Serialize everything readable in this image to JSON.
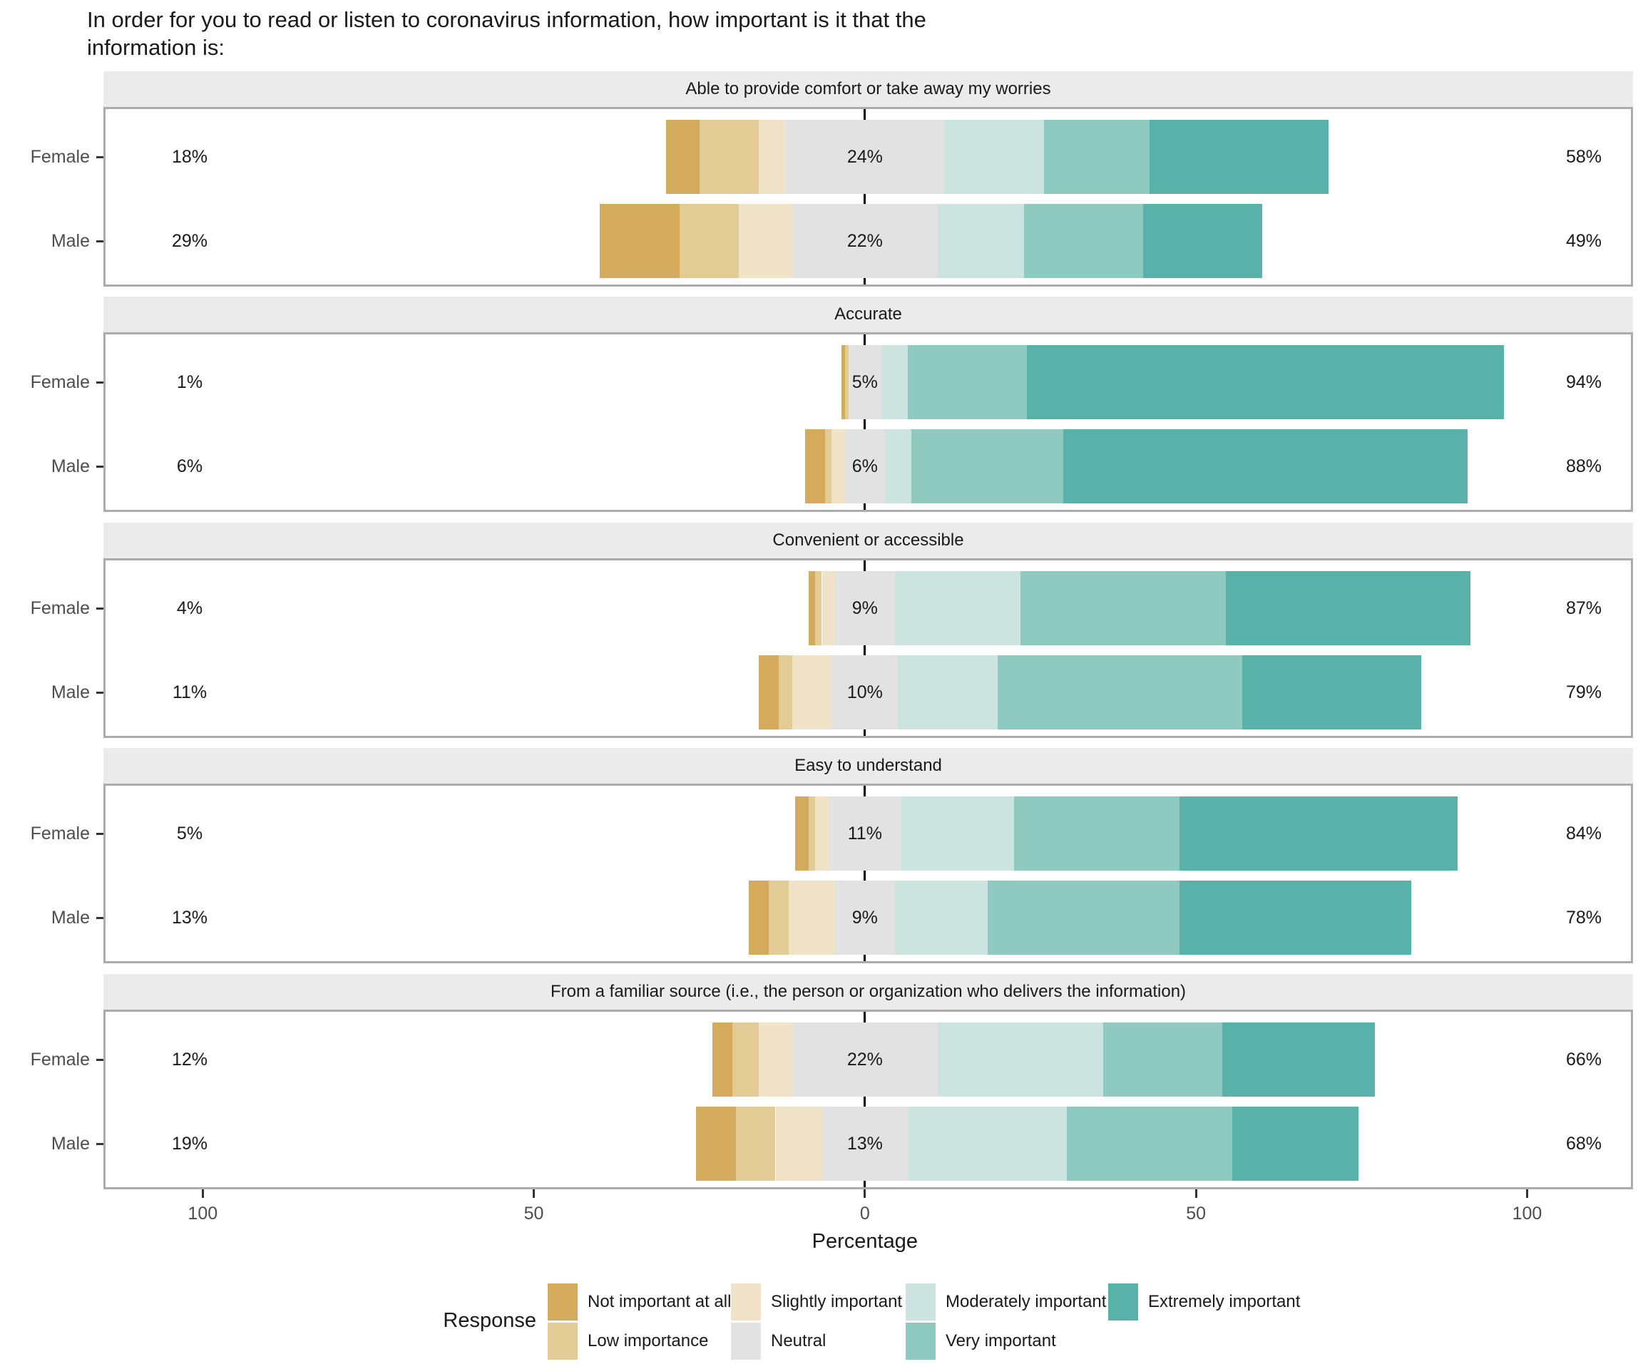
{
  "title": "In order for you to read or listen to coronavirus information, how important is it that the information is:",
  "chart_data": {
    "type": "bar",
    "variant": "diverging-stacked-likert",
    "orientation": "horizontal",
    "xlabel": "Percentage",
    "xlim": [
      -115,
      116
    ],
    "grid": false,
    "axis_ticks": [
      {
        "value": -100,
        "label": "100"
      },
      {
        "value": -50,
        "label": "50"
      },
      {
        "value": 0,
        "label": "0"
      },
      {
        "value": 50,
        "label": "50"
      },
      {
        "value": 100,
        "label": "100"
      }
    ],
    "legend": {
      "title": "Response",
      "position": "bottom",
      "items": [
        {
          "label": "Not important at all",
          "color": "#d4aa5c"
        },
        {
          "label": "Low importance",
          "color": "#e2cb95"
        },
        {
          "label": "Slightly important",
          "color": "#f1e3c8"
        },
        {
          "label": "Neutral",
          "color": "#e2e2e2"
        },
        {
          "label": "Moderately important",
          "color": "#cbe4e0"
        },
        {
          "label": "Very important",
          "color": "#8fcac1"
        },
        {
          "label": "Extremely important",
          "color": "#58b2a9"
        }
      ]
    },
    "segment_order": [
      "Not important at all",
      "Low importance",
      "Slightly important",
      "Neutral",
      "Moderately important",
      "Very important",
      "Extremely important"
    ],
    "panels": [
      {
        "title": "Able to provide comfort or take away my worries",
        "rows": [
          {
            "group": "Female",
            "segments": [
              5,
              9,
              4,
              24,
              15,
              16,
              27
            ],
            "left_label": "18%",
            "neutral_label": "24%",
            "right_label": "58%"
          },
          {
            "group": "Male",
            "segments": [
              12,
              9,
              8,
              22,
              13,
              18,
              18
            ],
            "left_label": "29%",
            "neutral_label": "22%",
            "right_label": "49%"
          }
        ]
      },
      {
        "title": "Accurate",
        "rows": [
          {
            "group": "Female",
            "segments": [
              0.5,
              0.5,
              0,
              5,
              4,
              18,
              72
            ],
            "left_label": "1%",
            "neutral_label": "5%",
            "right_label": "94%"
          },
          {
            "group": "Male",
            "segments": [
              3,
              1,
              2,
              6,
              4,
              23,
              61
            ],
            "left_label": "6%",
            "neutral_label": "6%",
            "right_label": "88%"
          }
        ]
      },
      {
        "title": "Convenient or accessible",
        "rows": [
          {
            "group": "Female",
            "segments": [
              1,
              1,
              2,
              9,
              19,
              31,
              37
            ],
            "left_label": "4%",
            "neutral_label": "9%",
            "right_label": "87%"
          },
          {
            "group": "Male",
            "segments": [
              3,
              2,
              6,
              10,
              15,
              37,
              27
            ],
            "left_label": "11%",
            "neutral_label": "10%",
            "right_label": "79%"
          }
        ]
      },
      {
        "title": "Easy to understand",
        "rows": [
          {
            "group": "Female",
            "segments": [
              2,
              1,
              2,
              11,
              17,
              25,
              42
            ],
            "left_label": "5%",
            "neutral_label": "11%",
            "right_label": "84%"
          },
          {
            "group": "Male",
            "segments": [
              3,
              3,
              7,
              9,
              14,
              29,
              35
            ],
            "left_label": "13%",
            "neutral_label": "9%",
            "right_label": "78%"
          }
        ]
      },
      {
        "title": "From a familiar source (i.e., the person or organization who delivers the information)",
        "rows": [
          {
            "group": "Female",
            "segments": [
              3,
              4,
              5,
              22,
              25,
              18,
              23
            ],
            "left_label": "12%",
            "neutral_label": "22%",
            "right_label": "66%"
          },
          {
            "group": "Male",
            "segments": [
              6,
              6,
              7,
              13,
              24,
              25,
              19
            ],
            "left_label": "19%",
            "neutral_label": "13%",
            "right_label": "68%"
          }
        ]
      }
    ]
  }
}
